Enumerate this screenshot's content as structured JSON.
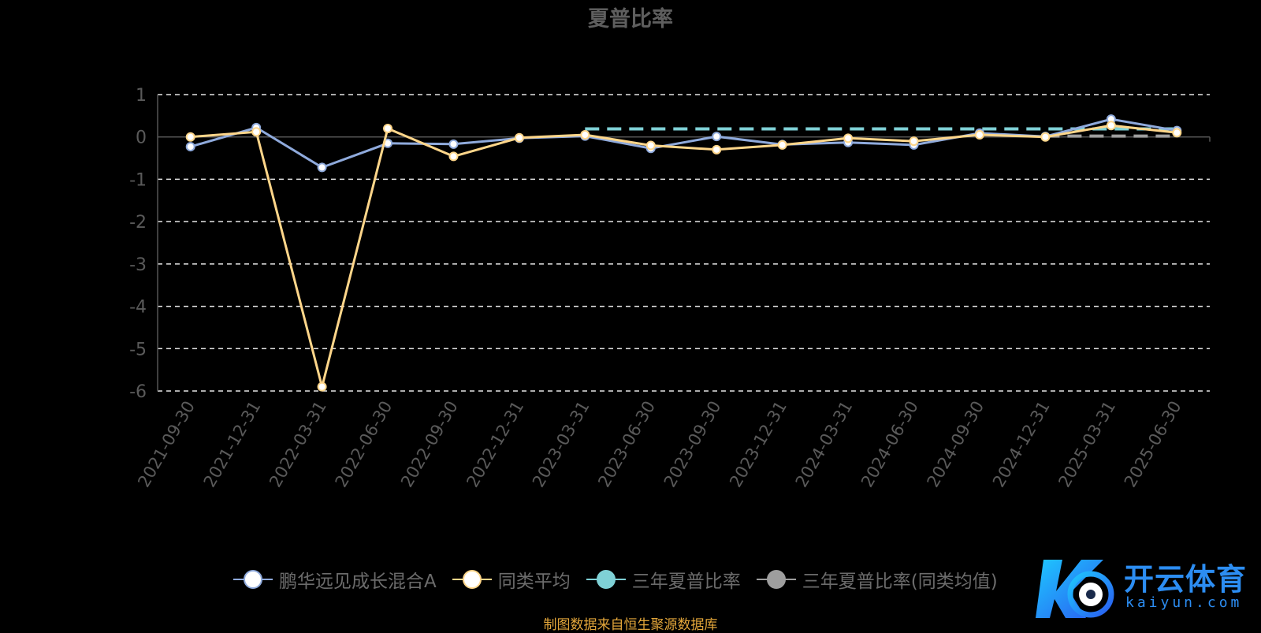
{
  "chart_data": {
    "type": "line",
    "title": "夏普比率",
    "categories": [
      "2021-09-30",
      "2021-12-31",
      "2022-03-31",
      "2022-06-30",
      "2022-09-30",
      "2022-12-31",
      "2023-03-31",
      "2023-06-30",
      "2023-09-30",
      "2023-12-31",
      "2024-03-31",
      "2024-06-30",
      "2024-09-30",
      "2024-12-31",
      "2025-03-31",
      "2025-06-30"
    ],
    "ylim": [
      -6,
      1
    ],
    "yticks": [
      1,
      0,
      -1,
      -2,
      -3,
      -4,
      -5,
      -6
    ],
    "grid": true,
    "legend_position": "bottom",
    "series": [
      {
        "name": "鹏华远见成长混合A",
        "values": [
          -0.23,
          0.22,
          -0.72,
          -0.15,
          -0.17,
          -0.03,
          0.02,
          -0.27,
          0.01,
          -0.18,
          -0.13,
          -0.19,
          0.09,
          0.01,
          0.42,
          0.15
        ],
        "color": "#8faadc",
        "marker_fill": "#ffffff"
      },
      {
        "name": "同类平均",
        "values": [
          0.0,
          0.12,
          -5.9,
          0.2,
          -0.46,
          -0.02,
          0.05,
          -0.2,
          -0.3,
          -0.19,
          -0.03,
          -0.1,
          0.05,
          0.0,
          0.27,
          0.1
        ],
        "color": "#ffd68a",
        "marker_fill": "#ffffff"
      },
      {
        "name": "三年夏普比率",
        "values": [
          null,
          null,
          null,
          null,
          null,
          null,
          0.19,
          0.19,
          0.19,
          0.19,
          0.19,
          0.19,
          0.19,
          0.19,
          0.19,
          0.19
        ],
        "color": "#7fd1d6",
        "dashed": true
      },
      {
        "name": "三年夏普比率(同类均值)",
        "values": [
          null,
          null,
          null,
          null,
          null,
          null,
          null,
          null,
          null,
          null,
          null,
          null,
          null,
          0.02,
          0.02,
          0.02
        ],
        "color": "#9e9e9e",
        "dashed": true
      }
    ]
  },
  "footer": {
    "source": "制图数据来自恒生聚源数据库"
  },
  "logo": {
    "cn": "开云体育",
    "en": "kaiyun.com"
  }
}
